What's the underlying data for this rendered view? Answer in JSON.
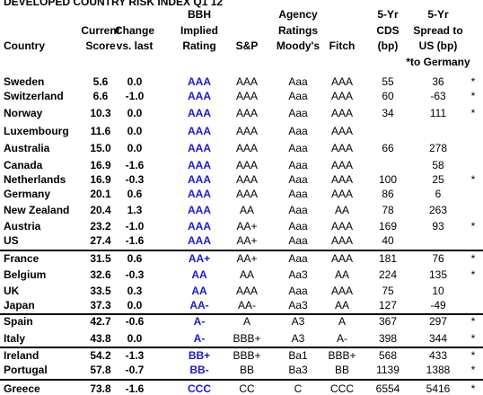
{
  "title": "DEVELOPED COUNTRY RISK INDEX Q1 12",
  "header": [
    [
      "Country"
    ],
    [
      "Current",
      "Score"
    ],
    [
      "Change",
      "vs. last"
    ],
    [
      "BBH",
      "Implied",
      "Rating"
    ],
    [
      "S&P"
    ],
    [
      "Agency",
      "Ratings",
      "Moody's"
    ],
    [
      "Fitch"
    ],
    [
      "5-Yr",
      "CDS",
      "(bp)"
    ],
    [
      "5-Yr",
      "Spread to",
      "US (bp)",
      "*to Germany"
    ]
  ],
  "groups": [
    [
      [
        "Sweden",
        "5.6",
        "0.0",
        "AAA",
        "AAA",
        "Aaa",
        "AAA",
        "55",
        "36",
        "*"
      ],
      [
        "Switzerland",
        "6.6",
        "-1.0",
        "AAA",
        "AAA",
        "Aaa",
        "AAA",
        "60",
        "-63",
        "*"
      ],
      [
        "Norway",
        "10.3",
        "0.0",
        "AAA",
        "AAA",
        "Aaa",
        "AAA",
        "34",
        "111",
        "*"
      ],
      [
        "Luxembourg",
        "11.6",
        "0.0",
        "AAA",
        "AAA",
        "Aaa",
        "AAA",
        null,
        null,
        null
      ],
      [
        "Australia",
        "15.0",
        "0.0",
        "AAA",
        "AAA",
        "Aaa",
        "AAA",
        "66",
        "278",
        null
      ],
      [
        "Canada",
        "16.9",
        "-1.6",
        "AAA",
        "AAA",
        "Aaa",
        "AAA",
        null,
        "58",
        null
      ],
      [
        "Netherlands",
        "16.9",
        "-0.3",
        "AAA",
        "AAA",
        "Aaa",
        "AAA",
        "100",
        "25",
        "*"
      ],
      [
        "Germany",
        "20.1",
        "0.6",
        "AAA",
        "AAA",
        "Aaa",
        "AAA",
        "86",
        "6",
        null
      ],
      [
        "New Zealand",
        "20.4",
        "1.3",
        "AAA",
        "AA",
        "Aaa",
        "AA",
        "78",
        "263",
        null
      ],
      [
        "Austria",
        "23.2",
        "-1.0",
        "AAA",
        "AA+",
        "Aaa",
        "AAA",
        "169",
        "93",
        "*"
      ],
      [
        "US",
        "27.4",
        "-1.6",
        "AAA",
        "AA+",
        "Aaa",
        "AAA",
        "40",
        null,
        null
      ]
    ],
    [
      [
        "France",
        "31.5",
        "0.6",
        "AA+",
        "AA+",
        "Aaa",
        "AAA",
        "181",
        "76",
        "*"
      ],
      [
        "Belgium",
        "32.6",
        "-0.3",
        "AA",
        "AA",
        "Aa3",
        "AA",
        "224",
        "135",
        "*"
      ],
      [
        "UK",
        "33.5",
        "0.3",
        "AA",
        "AAA",
        "Aaa",
        "AAA",
        "75",
        "10",
        null
      ],
      [
        "Japan",
        "37.3",
        "0.0",
        "AA-",
        "AA-",
        "Aa3",
        "AA",
        "127",
        "-49",
        null
      ]
    ],
    [
      [
        "Spain",
        "42.7",
        "-0.6",
        "A-",
        "A",
        "A3",
        "A",
        "367",
        "297",
        "*"
      ],
      [
        "Italy",
        "43.8",
        "0.0",
        "A-",
        "BBB+",
        "A3",
        "A-",
        "398",
        "344",
        "*"
      ]
    ],
    [
      [
        "Ireland",
        "54.2",
        "-1.3",
        "BB+",
        "BBB+",
        "Ba1",
        "BBB+",
        "568",
        "433",
        "*"
      ],
      [
        "Portugal",
        "57.8",
        "-0.7",
        "BB-",
        "BB",
        "Ba3",
        "BB",
        "1139",
        "1388",
        "*"
      ]
    ],
    [
      [
        "Greece",
        "73.8",
        "-1.6",
        "CCC",
        "CC",
        "C",
        "CCC",
        "6554",
        "5416",
        "*"
      ]
    ]
  ]
}
